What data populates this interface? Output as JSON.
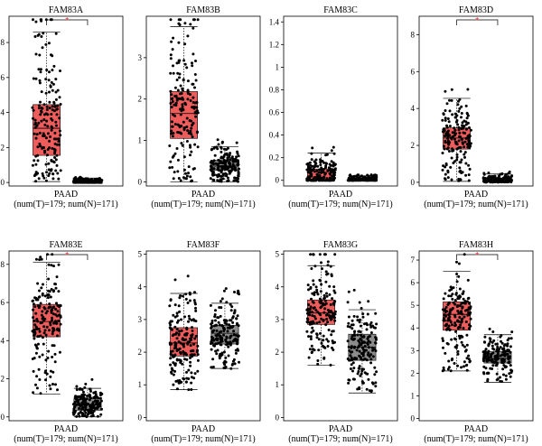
{
  "chart_data": [
    {
      "type": "box",
      "title": "FAM83A",
      "xlabel": "PAAD",
      "counts": "(num(T)=179; num(N)=171)",
      "yticks": [
        0,
        2,
        4,
        6,
        8
      ],
      "ylim": [
        -0.2,
        9.5
      ],
      "significant": true,
      "boxes": [
        {
          "group": "T",
          "color": "#ee5c5c",
          "min": 0.05,
          "q1": 1.55,
          "median": 3.1,
          "q3": 4.45,
          "max": 8.6
        },
        {
          "group": "N",
          "color": "#8c8c8c",
          "min": 0.0,
          "q1": 0.0,
          "median": 0.03,
          "q3": 0.1,
          "max": 0.25
        }
      ]
    },
    {
      "type": "box",
      "title": "FAM83B",
      "xlabel": "PAAD",
      "counts": "(num(T)=179; num(N)=171)",
      "yticks": [
        0,
        1,
        2,
        3
      ],
      "ylim": [
        -0.1,
        4.0
      ],
      "significant": false,
      "boxes": [
        {
          "group": "T",
          "color": "#ee5c5c",
          "min": 0.0,
          "q1": 1.05,
          "median": 1.65,
          "q3": 2.18,
          "max": 3.75
        },
        {
          "group": "N",
          "color": "#8c8c8c",
          "min": 0.0,
          "q1": 0.28,
          "median": 0.38,
          "q3": 0.52,
          "max": 0.85
        }
      ]
    },
    {
      "type": "box",
      "title": "FAM83C",
      "xlabel": "PAAD",
      "counts": "(num(T)=179; num(N)=171)",
      "yticks": [
        0.0,
        0.2,
        0.4,
        0.6,
        0.8,
        1.0,
        1.2,
        1.4
      ],
      "ylim": [
        -0.05,
        1.45
      ],
      "significant": false,
      "boxes": [
        {
          "group": "T",
          "color": "#ee5c5c",
          "min": 0.0,
          "q1": 0.0,
          "median": 0.0,
          "q3": 0.1,
          "max": 0.24
        },
        {
          "group": "N",
          "color": "#8c8c8c",
          "min": 0.0,
          "q1": 0.0,
          "median": 0.0,
          "q3": 0.015,
          "max": 0.04
        }
      ]
    },
    {
      "type": "box",
      "title": "FAM83D",
      "xlabel": "PAAD",
      "counts": "(num(T)=179; num(N)=171)",
      "yticks": [
        0,
        2,
        4,
        6,
        8
      ],
      "ylim": [
        -0.2,
        9.0
      ],
      "significant": true,
      "boxes": [
        {
          "group": "T",
          "color": "#ee5c5c",
          "min": 0.05,
          "q1": 1.8,
          "median": 2.4,
          "q3": 2.95,
          "max": 4.55
        },
        {
          "group": "N",
          "color": "#8c8c8c",
          "min": 0.0,
          "q1": 0.05,
          "median": 0.12,
          "q3": 0.22,
          "max": 0.45
        }
      ]
    },
    {
      "type": "box",
      "title": "FAM83E",
      "xlabel": "PAAD",
      "counts": "(num(T)=179; num(N)=171)",
      "yticks": [
        0,
        2,
        4,
        6,
        8
      ],
      "ylim": [
        -0.2,
        8.7
      ],
      "significant": true,
      "boxes": [
        {
          "group": "T",
          "color": "#ee5c5c",
          "min": 1.2,
          "q1": 4.2,
          "median": 5.0,
          "q3": 5.9,
          "max": 8.1
        },
        {
          "group": "N",
          "color": "#8c8c8c",
          "min": 0.0,
          "q1": 0.35,
          "median": 0.65,
          "q3": 0.95,
          "max": 1.5
        }
      ]
    },
    {
      "type": "box",
      "title": "FAM83F",
      "xlabel": "PAAD",
      "counts": "(num(T)=179; num(N)=171)",
      "yticks": [
        0,
        1,
        2,
        3,
        4,
        5
      ],
      "ylim": [
        -0.1,
        5.1
      ],
      "significant": false,
      "boxes": [
        {
          "group": "T",
          "color": "#ee5c5c",
          "min": 0.85,
          "q1": 1.88,
          "median": 2.28,
          "q3": 2.75,
          "max": 3.8
        },
        {
          "group": "N",
          "color": "#8c8c8c",
          "min": 1.5,
          "q1": 2.25,
          "median": 2.58,
          "q3": 2.82,
          "max": 3.5
        }
      ]
    },
    {
      "type": "box",
      "title": "FAM83G",
      "xlabel": "PAAD",
      "counts": "(num(T)=179; num(N)=171)",
      "yticks": [
        0,
        1,
        2,
        3,
        4,
        5
      ],
      "ylim": [
        -0.1,
        5.1
      ],
      "significant": false,
      "boxes": [
        {
          "group": "T",
          "color": "#ee5c5c",
          "min": 1.6,
          "q1": 2.85,
          "median": 3.2,
          "q3": 3.6,
          "max": 4.65
        },
        {
          "group": "N",
          "color": "#8c8c8c",
          "min": 0.75,
          "q1": 1.75,
          "median": 2.15,
          "q3": 2.55,
          "max": 3.3
        }
      ]
    },
    {
      "type": "box",
      "title": "FAM83H",
      "xlabel": "PAAD",
      "counts": "(num(T)=179; num(N)=171)",
      "yticks": [
        0,
        1,
        2,
        3,
        4,
        5,
        6,
        7
      ],
      "ylim": [
        -0.1,
        7.4
      ],
      "significant": true,
      "boxes": [
        {
          "group": "T",
          "color": "#ee5c5c",
          "min": 2.1,
          "q1": 3.9,
          "median": 4.6,
          "q3": 5.15,
          "max": 6.5
        },
        {
          "group": "N",
          "color": "#8c8c8c",
          "min": 1.6,
          "q1": 2.45,
          "median": 2.65,
          "q3": 2.95,
          "max": 3.7
        }
      ]
    }
  ]
}
